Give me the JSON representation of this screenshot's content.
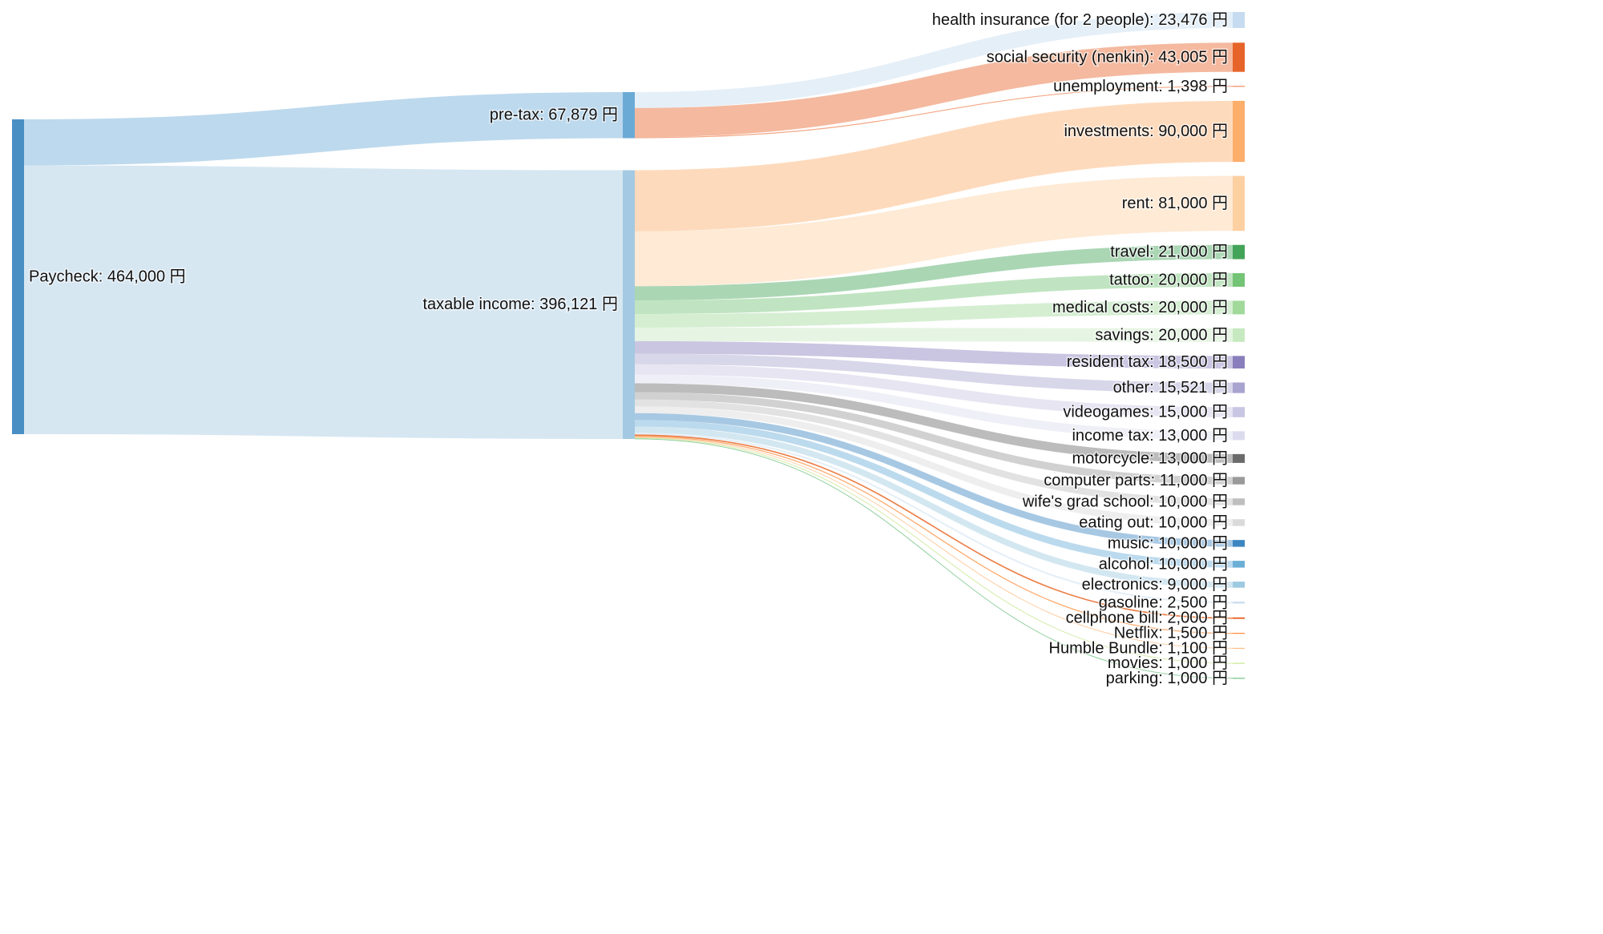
{
  "chart_data": {
    "type": "sankey",
    "currency": "円",
    "nodes": [
      {
        "id": "paycheck",
        "name": "Paycheck",
        "value": 464000,
        "color": "#4a8fc4"
      },
      {
        "id": "pretax",
        "name": "pre-tax",
        "value": 67879,
        "color": "#6caad6"
      },
      {
        "id": "taxable",
        "name": "taxable income",
        "value": 396121,
        "color": "#a4c9e2"
      },
      {
        "id": "health",
        "name": "health insurance (for 2 people)",
        "value": 23476,
        "color": "#c6dbef"
      },
      {
        "id": "social",
        "name": "social security (nenkin)",
        "value": 43005,
        "color": "#e6642a"
      },
      {
        "id": "unemployment",
        "name": "unemployment",
        "value": 1398,
        "color": "#f08a5e"
      },
      {
        "id": "investments",
        "name": "investments",
        "value": 90000,
        "color": "#fdae6b"
      },
      {
        "id": "rent",
        "name": "rent",
        "value": 81000,
        "color": "#fdd0a2"
      },
      {
        "id": "travel",
        "name": "travel",
        "value": 21000,
        "color": "#43a459"
      },
      {
        "id": "tattoo",
        "name": "tattoo",
        "value": 20000,
        "color": "#74c476"
      },
      {
        "id": "medical",
        "name": "medical costs",
        "value": 20000,
        "color": "#a1d99b"
      },
      {
        "id": "savings",
        "name": "savings",
        "value": 20000,
        "color": "#c7e9c0"
      },
      {
        "id": "resident",
        "name": "resident tax",
        "value": 18500,
        "color": "#8a7fbc"
      },
      {
        "id": "other",
        "name": "other",
        "value": 15521,
        "color": "#a9a3cf"
      },
      {
        "id": "videogames",
        "name": "videogames",
        "value": 15000,
        "color": "#c9c6e3"
      },
      {
        "id": "incometax",
        "name": "income tax",
        "value": 13000,
        "color": "#dcdbee"
      },
      {
        "id": "motorcycle",
        "name": "motorcycle",
        "value": 13000,
        "color": "#6b6b6b"
      },
      {
        "id": "computer",
        "name": "computer parts",
        "value": 11000,
        "color": "#9a9a9a"
      },
      {
        "id": "gradschool",
        "name": "wife's grad school",
        "value": 10000,
        "color": "#bfbfbf"
      },
      {
        "id": "eatingout",
        "name": "eating out",
        "value": 10000,
        "color": "#dadada"
      },
      {
        "id": "music",
        "name": "music",
        "value": 10000,
        "color": "#3b86c1"
      },
      {
        "id": "alcohol",
        "name": "alcohol",
        "value": 10000,
        "color": "#6baed6"
      },
      {
        "id": "electronics",
        "name": "electronics",
        "value": 9000,
        "color": "#9ecae1"
      },
      {
        "id": "gasoline",
        "name": "gasoline",
        "value": 2500,
        "color": "#c6dbef"
      },
      {
        "id": "cellphone",
        "name": "cellphone bill",
        "value": 2000,
        "color": "#e6550d"
      },
      {
        "id": "netflix",
        "name": "Netflix",
        "value": 1500,
        "color": "#fd8d3c"
      },
      {
        "id": "humble",
        "name": "Humble Bundle",
        "value": 1100,
        "color": "#fdbe85"
      },
      {
        "id": "movies",
        "name": "movies",
        "value": 1000,
        "color": "#c7e58f"
      },
      {
        "id": "parking",
        "name": "parking",
        "value": 1000,
        "color": "#6fc080"
      }
    ],
    "links": [
      {
        "source": "paycheck",
        "target": "pretax",
        "value": 67879
      },
      {
        "source": "paycheck",
        "target": "taxable",
        "value": 396121
      },
      {
        "source": "pretax",
        "target": "health",
        "value": 23476
      },
      {
        "source": "pretax",
        "target": "social",
        "value": 43005
      },
      {
        "source": "pretax",
        "target": "unemployment",
        "value": 1398
      },
      {
        "source": "taxable",
        "target": "investments",
        "value": 90000
      },
      {
        "source": "taxable",
        "target": "rent",
        "value": 81000
      },
      {
        "source": "taxable",
        "target": "travel",
        "value": 21000
      },
      {
        "source": "taxable",
        "target": "tattoo",
        "value": 20000
      },
      {
        "source": "taxable",
        "target": "medical",
        "value": 20000
      },
      {
        "source": "taxable",
        "target": "savings",
        "value": 20000
      },
      {
        "source": "taxable",
        "target": "resident",
        "value": 18500
      },
      {
        "source": "taxable",
        "target": "other",
        "value": 15521
      },
      {
        "source": "taxable",
        "target": "videogames",
        "value": 15000
      },
      {
        "source": "taxable",
        "target": "incometax",
        "value": 13000
      },
      {
        "source": "taxable",
        "target": "motorcycle",
        "value": 13000
      },
      {
        "source": "taxable",
        "target": "computer",
        "value": 11000
      },
      {
        "source": "taxable",
        "target": "gradschool",
        "value": 10000
      },
      {
        "source": "taxable",
        "target": "eatingout",
        "value": 10000
      },
      {
        "source": "taxable",
        "target": "music",
        "value": 10000
      },
      {
        "source": "taxable",
        "target": "alcohol",
        "value": 10000
      },
      {
        "source": "taxable",
        "target": "electronics",
        "value": 9000
      },
      {
        "source": "taxable",
        "target": "gasoline",
        "value": 2500
      },
      {
        "source": "taxable",
        "target": "cellphone",
        "value": 2000
      },
      {
        "source": "taxable",
        "target": "netflix",
        "value": 1500
      },
      {
        "source": "taxable",
        "target": "humble",
        "value": 1100
      },
      {
        "source": "taxable",
        "target": "movies",
        "value": 1000
      },
      {
        "source": "taxable",
        "target": "parking",
        "value": 1000
      }
    ]
  }
}
